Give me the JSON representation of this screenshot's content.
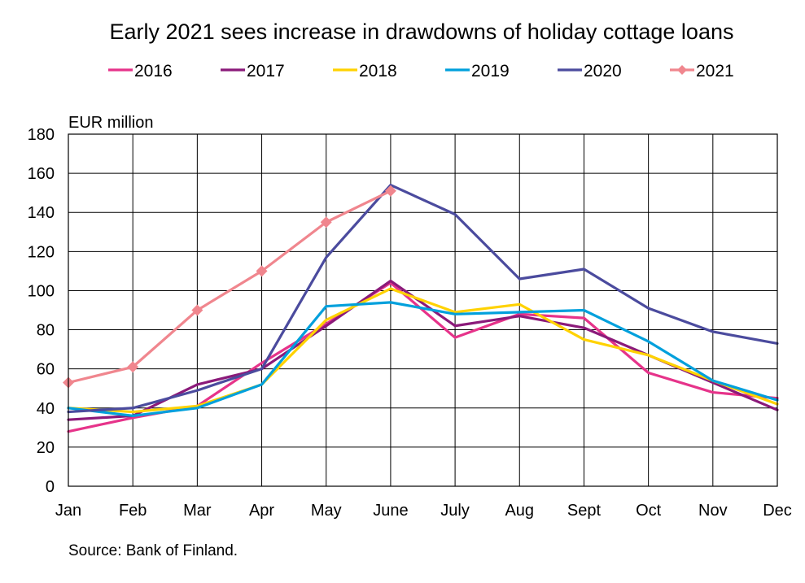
{
  "chart_data": {
    "type": "line",
    "title": "Early 2021 sees increase in drawdowns of holiday cottage loans",
    "ylabel": "EUR million",
    "xlabel": "",
    "source": "Source: Bank of Finland.",
    "categories": [
      "Jan",
      "Feb",
      "Mar",
      "Apr",
      "May",
      "June",
      "July",
      "Aug",
      "Sept",
      "Oct",
      "Nov",
      "Dec"
    ],
    "ylim": [
      0,
      180
    ],
    "yticks": [
      0,
      20,
      40,
      60,
      80,
      100,
      120,
      140,
      160,
      180
    ],
    "grid": true,
    "legend_position": "top",
    "series": [
      {
        "name": "2016",
        "color": "#e6338a",
        "marker": "none",
        "values": [
          28,
          35,
          41,
          63,
          83,
          104,
          76,
          88,
          86,
          58,
          48,
          45
        ]
      },
      {
        "name": "2017",
        "color": "#8b1a7a",
        "marker": "none",
        "values": [
          34,
          36,
          52,
          60,
          82,
          105,
          82,
          87,
          81,
          67,
          53,
          39
        ]
      },
      {
        "name": "2018",
        "color": "#ffd200",
        "marker": "none",
        "values": [
          40,
          38,
          41,
          52,
          85,
          101,
          89,
          93,
          75,
          67,
          54,
          42
        ]
      },
      {
        "name": "2019",
        "color": "#00a0dc",
        "marker": "none",
        "values": [
          40,
          36,
          40,
          52,
          92,
          94,
          88,
          89,
          90,
          74,
          54,
          44
        ]
      },
      {
        "name": "2020",
        "color": "#4b4b9e",
        "marker": "none",
        "values": [
          38,
          40,
          49,
          60,
          117,
          154,
          139,
          106,
          111,
          91,
          79,
          73
        ]
      },
      {
        "name": "2021",
        "color": "#f0868e",
        "marker": "diamond",
        "values": [
          53,
          61,
          90,
          110,
          135,
          151,
          null,
          null,
          null,
          null,
          null,
          null
        ]
      }
    ]
  }
}
